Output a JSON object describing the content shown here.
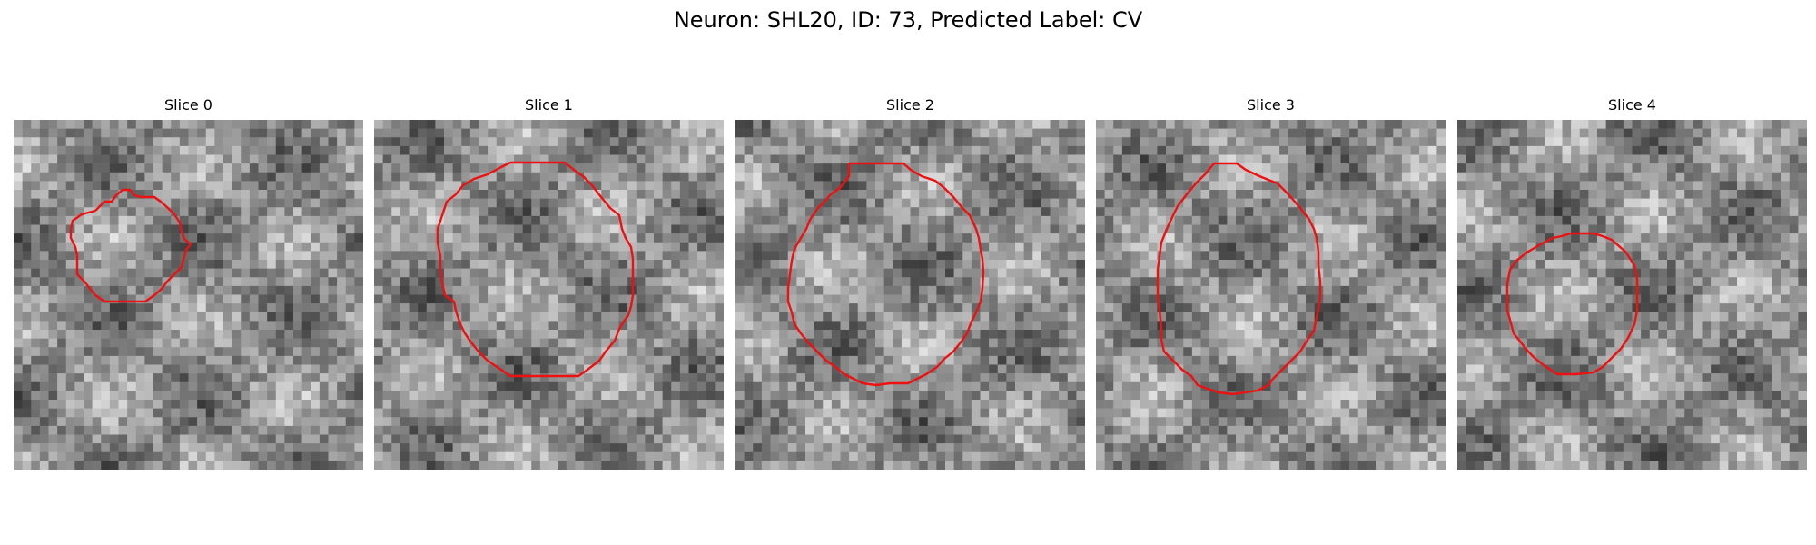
{
  "figure": {
    "title": "Neuron: SHL20, ID: 73, Predicted Label: CV"
  },
  "panels": [
    {
      "title": "Slice 0",
      "image": "grayscale-microscopy-patch",
      "outline_color": "#ee1111"
    },
    {
      "title": "Slice 1",
      "image": "grayscale-microscopy-patch",
      "outline_color": "#ee1111"
    },
    {
      "title": "Slice 2",
      "image": "grayscale-microscopy-patch",
      "outline_color": "#ee1111"
    },
    {
      "title": "Slice 3",
      "image": "grayscale-microscopy-patch",
      "outline_color": "#ee1111"
    },
    {
      "title": "Slice 4",
      "image": "grayscale-microscopy-patch",
      "outline_color": "#ee1111"
    }
  ]
}
